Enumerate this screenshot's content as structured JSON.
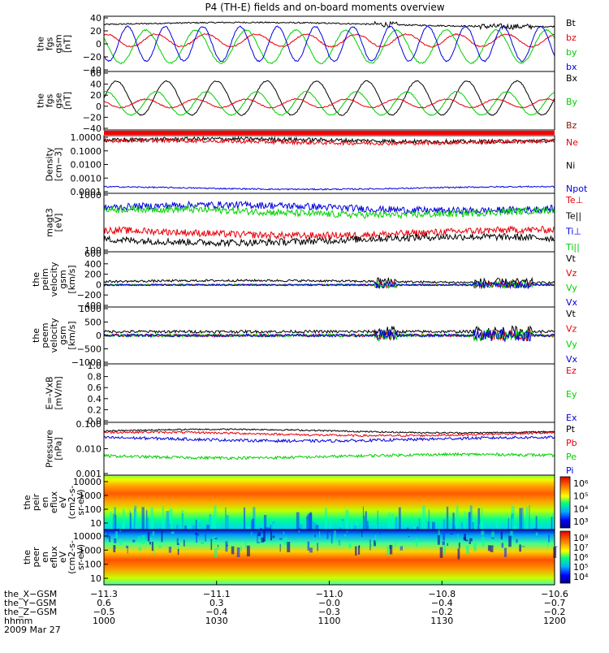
{
  "title": "P4 (TH-E) fields and on-board moments overview",
  "colors": {
    "black": "#000000",
    "red": "#e8000b",
    "green": "#00d000",
    "blue": "#0000e0",
    "darkred": "#8b1a00"
  },
  "chart_data": [
    {
      "type": "line",
      "name": "fgs_gsm",
      "ylabel": [
        "the",
        "fgs",
        "gsm",
        "[nT]"
      ],
      "ylim": [
        -40,
        40
      ],
      "yticks": [
        "40",
        "20",
        "0",
        "−20",
        "−40"
      ],
      "legend": [
        {
          "label": "Bt",
          "color": "black"
        },
        {
          "label": "bz",
          "color": "red"
        },
        {
          "label": "by",
          "color": "green"
        },
        {
          "label": "bx",
          "color": "blue"
        }
      ],
      "series": [
        {
          "name": "Bt",
          "color": "black",
          "kind": "level",
          "base": 28,
          "amp": 3,
          "noise": 2
        },
        {
          "name": "bz",
          "color": "red",
          "kind": "osc",
          "base": 5,
          "amp": 9,
          "period": 9,
          "noise": 2
        },
        {
          "name": "by",
          "color": "green",
          "kind": "osc",
          "base": -4,
          "amp": 24,
          "period": 9,
          "noise": 2
        },
        {
          "name": "bx",
          "color": "blue",
          "kind": "osc",
          "base": 0,
          "amp": 25,
          "period": 12,
          "noise": 2
        }
      ]
    },
    {
      "type": "line",
      "name": "fgs_gse",
      "ylabel": [
        "the",
        "fgs",
        "gse",
        "[nT]"
      ],
      "ylim": [
        -50,
        60
      ],
      "yticks": [
        "60",
        "40",
        "20",
        "0",
        "−20",
        "−40"
      ],
      "legend": [
        {
          "label": "Bx",
          "color": "black"
        },
        {
          "label": "By",
          "color": "green"
        },
        {
          "label": "Bz",
          "color": "darkred"
        }
      ],
      "series": [
        {
          "name": "Bx",
          "color": "black",
          "kind": "osc",
          "base": 10,
          "amp": 32,
          "period": 9,
          "noise": 2
        },
        {
          "name": "By",
          "color": "green",
          "kind": "osc",
          "base": 0,
          "amp": 22,
          "period": 9,
          "noise": 2
        },
        {
          "name": "Bz",
          "color": "red",
          "kind": "osc",
          "base": 0,
          "amp": 8,
          "period": 9,
          "noise": 2
        }
      ]
    },
    {
      "type": "line",
      "name": "density",
      "log": true,
      "ylabel": [
        "Density",
        "[cm−3]"
      ],
      "ylim": [
        0.0001,
        2
      ],
      "yticks": [
        "1.0000",
        "0.1000",
        "0.0100",
        "0.0010",
        "0.0001"
      ],
      "legend": [
        {
          "label": "Ne",
          "color": "red"
        },
        {
          "label": "Ni",
          "color": "black"
        },
        {
          "label": "Npot",
          "color": "blue"
        }
      ],
      "series": [
        {
          "name": "Ni",
          "color": "black",
          "kind": "level",
          "base": 0.9,
          "amp": 0.1,
          "noise": 0.15
        },
        {
          "name": "Ne",
          "color": "red",
          "kind": "level",
          "base": 0.7,
          "amp": 0.1,
          "noise": 0.15
        },
        {
          "name": "Npot",
          "color": "blue",
          "kind": "level",
          "base": 0.00025,
          "amp": 0,
          "noise": 0.05
        }
      ]
    },
    {
      "type": "line",
      "name": "temperature",
      "log": true,
      "ylabel": [
        "magt3",
        "[eV]"
      ],
      "ylim": [
        100,
        10000
      ],
      "yticks": [
        "1000",
        "100"
      ],
      "legend": [
        {
          "label": "Te⊥",
          "color": "red"
        },
        {
          "label": "Te||",
          "color": "black"
        },
        {
          "label": "Ti⊥",
          "color": "blue"
        },
        {
          "label": "Ti||",
          "color": "green"
        }
      ],
      "series": [
        {
          "name": "Ti⊥",
          "color": "blue",
          "kind": "level",
          "base": 3200,
          "amp": 0,
          "noise": 0.12
        },
        {
          "name": "Ti||",
          "color": "green",
          "kind": "level",
          "base": 2300,
          "amp": 0,
          "noise": 0.12
        },
        {
          "name": "Te⊥",
          "color": "red",
          "kind": "level",
          "base": 450,
          "amp": 0,
          "noise": 0.12
        },
        {
          "name": "Te||",
          "color": "black",
          "kind": "level",
          "base": 260,
          "amp": 0,
          "noise": 0.12
        }
      ]
    },
    {
      "type": "line",
      "name": "peim_velocity",
      "ylabel": [
        "the",
        "peim",
        "velocity",
        "gsm",
        "[km/s]"
      ],
      "ylim": [
        -400,
        600
      ],
      "yticks": [
        "600",
        "400",
        "200",
        "0",
        "−200",
        "−400"
      ],
      "legend": [
        {
          "label": "Vt",
          "color": "black"
        },
        {
          "label": "Vz",
          "color": "red"
        },
        {
          "label": "Vy",
          "color": "green"
        },
        {
          "label": "Vx",
          "color": "blue"
        }
      ],
      "series": [
        {
          "name": "Vt",
          "color": "black",
          "kind": "level",
          "base": 60,
          "amp": 20,
          "noise": 40
        },
        {
          "name": "Vz",
          "color": "red",
          "kind": "level",
          "base": 0,
          "amp": 0,
          "noise": 30
        },
        {
          "name": "Vy",
          "color": "green",
          "kind": "level",
          "base": 0,
          "amp": 0,
          "noise": 30
        },
        {
          "name": "Vx",
          "color": "blue",
          "kind": "level",
          "base": 0,
          "amp": 0,
          "noise": 30
        }
      ]
    },
    {
      "type": "line",
      "name": "peem_velocity",
      "ylabel": [
        "the",
        "peem",
        "velocity",
        "gsm",
        "[km/s]"
      ],
      "ylim": [
        -1500,
        1500
      ],
      "yticks": [
        "1000",
        "500",
        "0",
        "−500",
        "−1000"
      ],
      "legend": [
        {
          "label": "Vt",
          "color": "black"
        },
        {
          "label": "Vz",
          "color": "red"
        },
        {
          "label": "Vy",
          "color": "green"
        },
        {
          "label": "Vx",
          "color": "blue"
        }
      ],
      "series": [
        {
          "name": "Vt",
          "color": "black",
          "kind": "level",
          "base": 200,
          "amp": 0,
          "noise": 150
        },
        {
          "name": "Vz",
          "color": "red",
          "kind": "level",
          "base": 0,
          "amp": 0,
          "noise": 150
        },
        {
          "name": "Vy",
          "color": "green",
          "kind": "level",
          "base": 0,
          "amp": 0,
          "noise": 150
        },
        {
          "name": "Vx",
          "color": "blue",
          "kind": "level",
          "base": 0,
          "amp": 0,
          "noise": 150
        }
      ]
    },
    {
      "type": "line",
      "name": "efield",
      "ylabel": [
        "E=-VxB",
        "[mV/m]"
      ],
      "ylim": [
        0,
        1
      ],
      "yticks": [
        "1.0",
        "0.8",
        "0.6",
        "0.4",
        "0.2",
        "0.0"
      ],
      "legend": [
        {
          "label": "Ez",
          "color": "red"
        },
        {
          "label": "Ey",
          "color": "green"
        },
        {
          "label": "Ex",
          "color": "blue"
        }
      ],
      "series": []
    },
    {
      "type": "line",
      "name": "pressure",
      "log": true,
      "ylabel": [
        "Pressure",
        "[nPa]"
      ],
      "ylim": [
        0.001,
        1
      ],
      "yticks": [
        "0.100",
        "0.010",
        "0.001"
      ],
      "legend": [
        {
          "label": "Pt",
          "color": "black"
        },
        {
          "label": "Pb",
          "color": "red"
        },
        {
          "label": "Pe",
          "color": "green"
        },
        {
          "label": "Pi",
          "color": "blue"
        }
      ],
      "series": [
        {
          "name": "Pt",
          "color": "black",
          "kind": "level",
          "base": 0.32,
          "amp": 0,
          "noise": 0.04
        },
        {
          "name": "Pb",
          "color": "red",
          "kind": "level",
          "base": 0.22,
          "amp": 0,
          "noise": 0.06
        },
        {
          "name": "Pi",
          "color": "blue",
          "kind": "level",
          "base": 0.11,
          "amp": 0,
          "noise": 0.08
        },
        {
          "name": "Pe",
          "color": "green",
          "kind": "level",
          "base": 0.012,
          "amp": 0,
          "noise": 0.08
        }
      ]
    },
    {
      "type": "heatmap",
      "name": "peir_energy",
      "ylabel": [
        "the",
        "peir",
        "en",
        "eflux",
        "eV",
        "(cm2-s-",
        "sr-eV)"
      ],
      "ylim": [
        10,
        20000
      ],
      "yticks": [
        "10000",
        "1000",
        "100",
        "10"
      ],
      "colorbar": {
        "ticks": [
          "10⁶",
          "10⁵",
          "10⁴",
          "10³"
        ]
      }
    },
    {
      "type": "heatmap",
      "name": "peer_energy",
      "ylabel": [
        "the",
        "peer",
        "en",
        "eflux",
        "eV",
        "(cm2-s-",
        "sr-eV)"
      ],
      "ylim": [
        10,
        20000
      ],
      "yticks": [
        "10000",
        "1000",
        "100",
        "10"
      ],
      "colorbar": {
        "ticks": [
          "10⁸",
          "10⁷",
          "10⁶",
          "10⁵",
          "10⁴"
        ]
      }
    }
  ],
  "xaxis": {
    "tick_labels": [
      "−11.3",
      "−11.1",
      "−11.0",
      "−10.8",
      "−10.6"
    ],
    "rows": [
      {
        "label": "the_X−GSM",
        "values": [
          "−11.3",
          "−11.1",
          "−11.0",
          "−10.8",
          "−10.6"
        ]
      },
      {
        "label": "the_Y−GSM",
        "values": [
          "0.6",
          "0.3",
          "−0.0",
          "−0.4",
          "−0.7"
        ]
      },
      {
        "label": "the_Z−GSM",
        "values": [
          "−0.5",
          "−0.4",
          "−0.3",
          "−0.2",
          "−0.2"
        ]
      },
      {
        "label": "hhmm",
        "values": [
          "1000",
          "1030",
          "1100",
          "1130",
          "1200"
        ]
      }
    ],
    "date": "2009 Mar 27"
  }
}
